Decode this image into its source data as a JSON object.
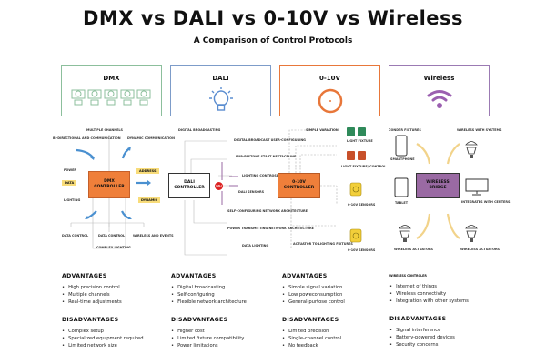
{
  "title": "DMX vs DALI vs 0-10V vs Wireless",
  "subtitle": "A Comparison of Control Protocols",
  "colors": {
    "dmx": "#8cbf9c",
    "dali": "#7d9cc9",
    "v010": "#e8773a",
    "wireless": "#9b7ab3",
    "controller_orange": "#ef7f3a",
    "bridge_purple": "#9a6aa3",
    "arrow_blue": "#4a90d0",
    "arrow_yellow": "#f2d38a",
    "tag_yellow": "#f8dc7a"
  },
  "cards": [
    {
      "label": "DMX",
      "icon": "fixture-row-icon"
    },
    {
      "label": "DALI",
      "icon": "lightbulb-icon"
    },
    {
      "label": "0-10V",
      "icon": "dial-icon"
    },
    {
      "label": "Wireless",
      "icon": "wifi-icon"
    }
  ],
  "dmx": {
    "controller": "DMX CONTROLLER",
    "labels": {
      "top": "MULTIPLE CHANNELS",
      "bidir": "BI-DIRECTIONAL AND COMMUNICATION",
      "dyncomm": "DYNAMIC COMMUNICATION",
      "power": "POWER",
      "data": "DATA",
      "lighting": "LIGHTING",
      "address": "ADDRESS",
      "dynamic": "DYNAMIC",
      "b1": "DATA CONTROL",
      "b2": "DATA CONTROL",
      "b3": "WIRELESS AND EVENTS",
      "b4": "COMPLEX LIGHTING"
    }
  },
  "dali": {
    "controller": "DALI CONTROLLER",
    "top": "DIGITAL BROADCASTING",
    "badge": "DALI",
    "labels": [
      "DIGITAL BROADCAST USER-CONFIGURING",
      "PUP-FASTONE START NESTACELINE",
      "LIGHTING CONTROSETS",
      "DALI SENSORS",
      "SELF-CONFIGURING NETWORK ARCHITECTURE",
      "POWER TRANSMITTING NETWORK ARCHITECTURE",
      "DATA LIGHTING"
    ]
  },
  "v010": {
    "controller": "0-10V CONTROLLER",
    "labels": {
      "simple": "SIMPLE VARIATION",
      "fixture": "LIGHT FIXTURE",
      "control": "LIGHT FIXTURE/ CONTROL",
      "sensors1": "0-10V SENSORS",
      "sensors2": "0-10V SENSORS",
      "actuator": "ACTUATOR TO LIGHTING FIXTURES"
    }
  },
  "wireless": {
    "bridge": "WIRELESS BRIDGE",
    "labels": {
      "conder": "CONDER FIXTURES",
      "smartphone": "SMARTPHONE",
      "withsys": "WIRELESS WITH SYSTEMS",
      "tablet": "TABLET",
      "integrates": "INTEGRATES WITH CENTERS",
      "act1": "WIRELESS ACTUATORS",
      "act2": "WIRELESS ACTUATORS"
    }
  },
  "columns": [
    {
      "adv_title": "ADVANTAGES",
      "adv": [
        "High precision control",
        "Multiple channels",
        "Real-time adjustments"
      ],
      "dis_title": "DISADVANTAGES",
      "dis": [
        "Complex setup",
        "Specialized equipment required",
        "Limited network size"
      ]
    },
    {
      "adv_title": "ADVANTAGES",
      "adv": [
        "Digital broadcasting",
        "Self-configuring",
        "Flexible network architecture"
      ],
      "dis_title": "DISADVANTAGES",
      "dis": [
        "Higher cost",
        "Limited fixture compatibility",
        "Power limitations"
      ]
    },
    {
      "adv_title": "ADVANTAGES",
      "adv": [
        "Simple signal variation",
        "Low poweconsumption",
        "General-purtose control"
      ],
      "dis_title": "DISADVANTAGES",
      "dis": [
        "Limited precision",
        "Single-channel control",
        "No feedback"
      ]
    },
    {
      "adv_title": "WIRELESS CONTROLER",
      "adv": [
        "Internet of things",
        "Wireless connectivity",
        "Integration with other systems"
      ],
      "dis_title": "DISADVANTAGES",
      "dis": [
        "Signal interference",
        "Battery-powered devices",
        "Security concerns"
      ]
    }
  ]
}
